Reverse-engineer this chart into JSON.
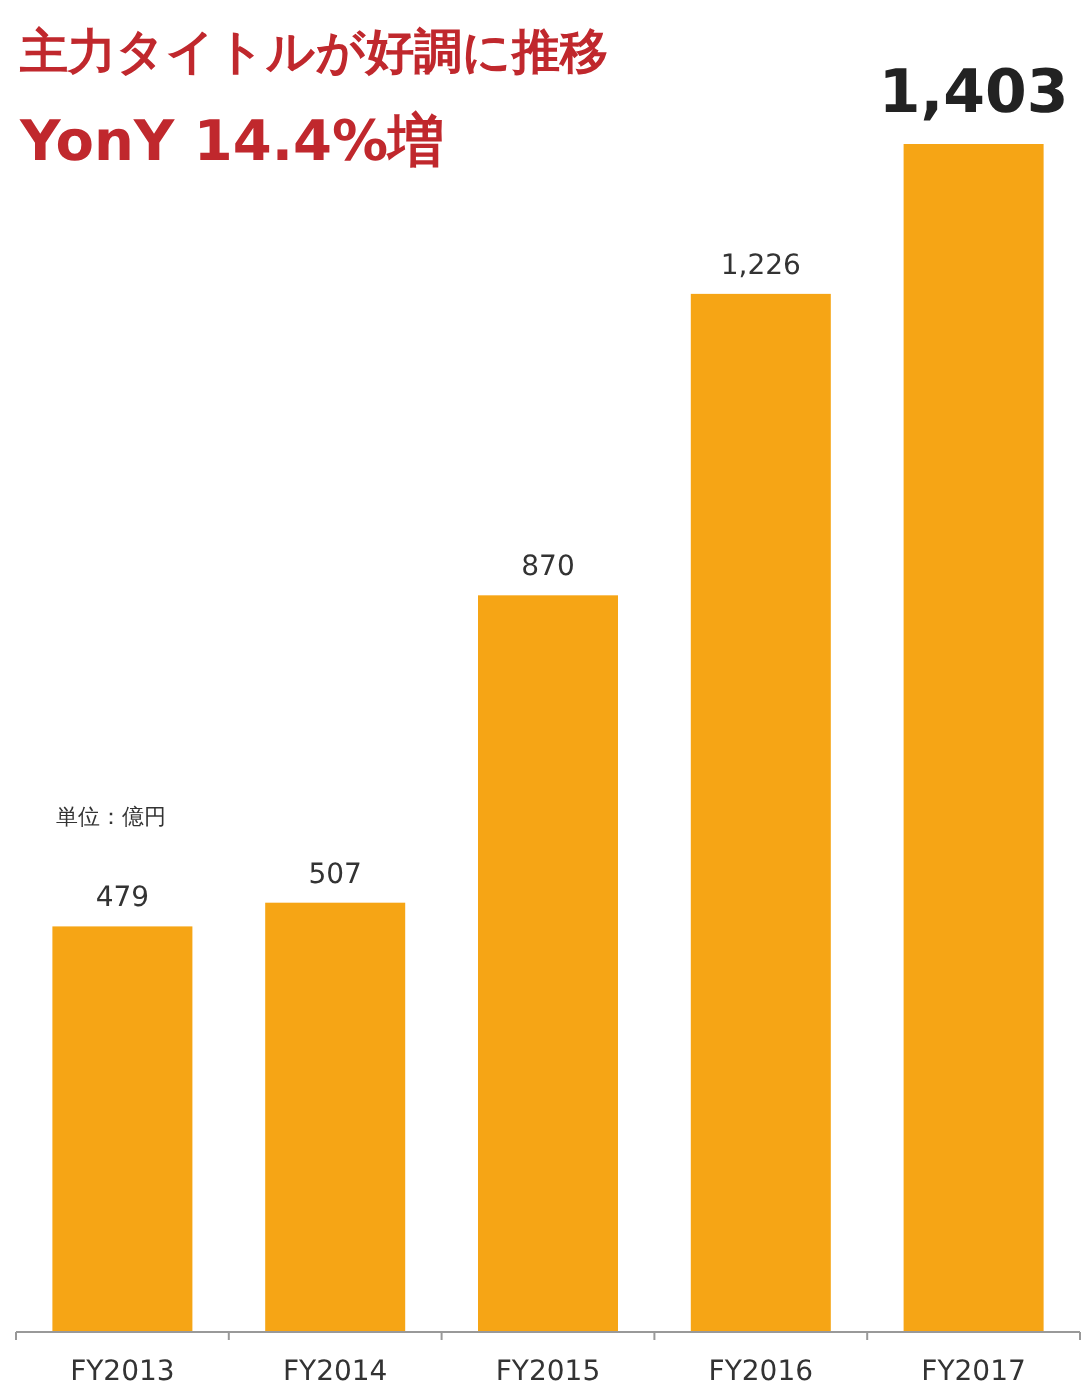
{
  "chart_data": {
    "type": "bar",
    "title": "主力タイトルが好調に推移",
    "subtitle": "YonY 14.4%増",
    "annotations": [
      "単位：億円"
    ],
    "categories": [
      "FY2013",
      "FY2014",
      "FY2015",
      "FY2016",
      "FY2017"
    ],
    "values": [
      479,
      507,
      870,
      1226,
      1403
    ],
    "value_labels": [
      "479",
      "507",
      "870",
      "1,226",
      "1,403"
    ],
    "color": "#f6a515"
  }
}
